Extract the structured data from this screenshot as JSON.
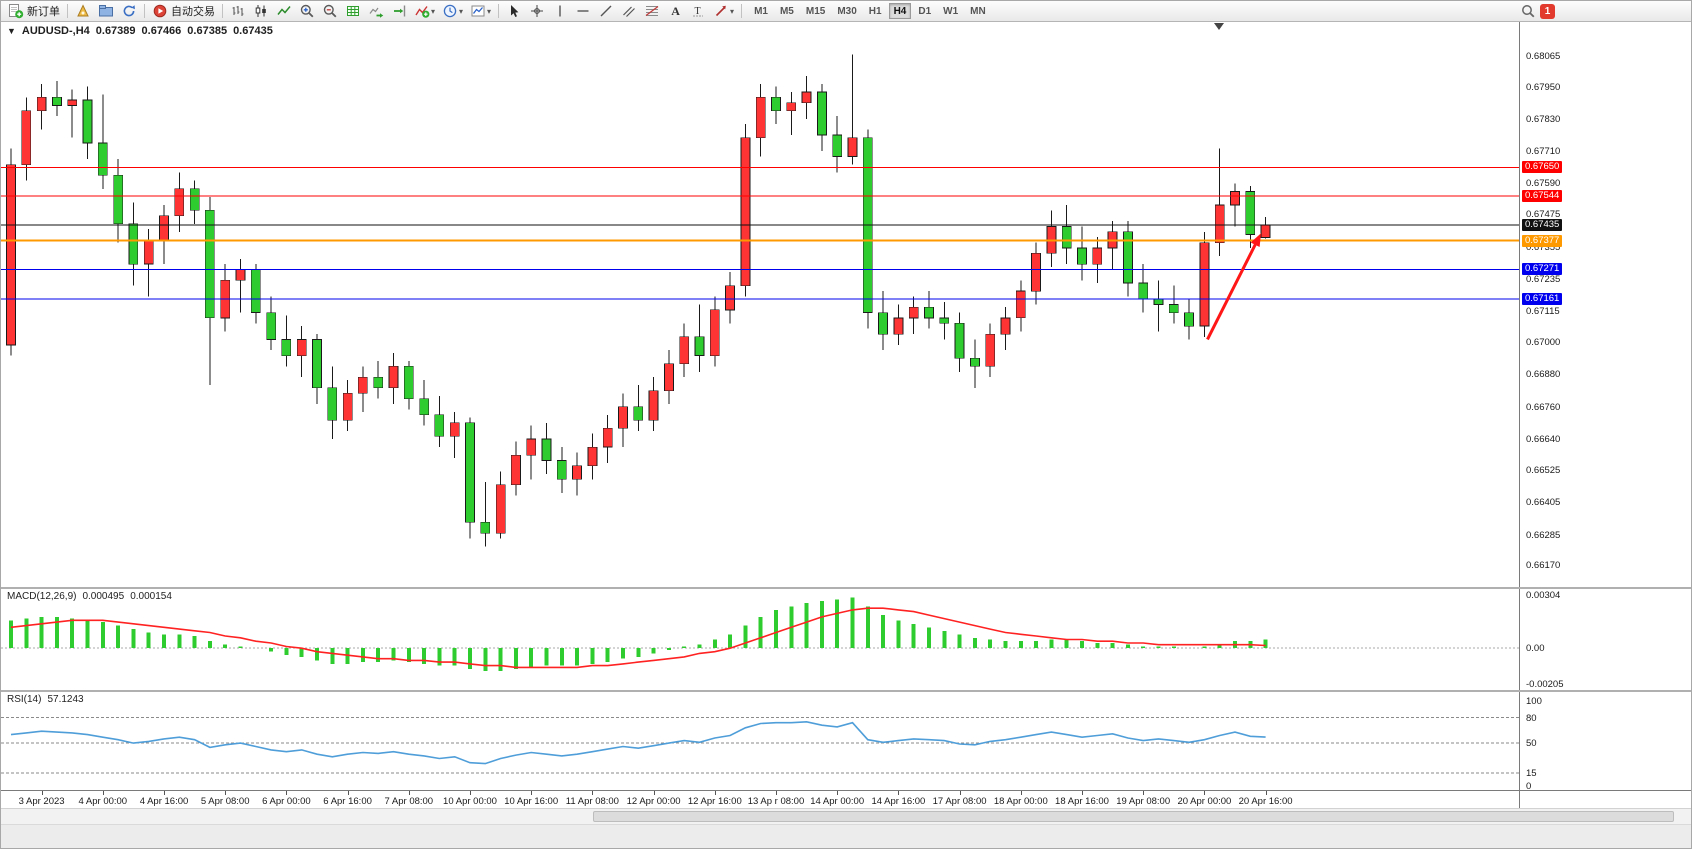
{
  "toolbar": {
    "new_order_label": "新订单",
    "auto_trading_label": "自动交易",
    "timeframes": [
      "M1",
      "M5",
      "M15",
      "M30",
      "H1",
      "H4",
      "D1",
      "W1",
      "MN"
    ],
    "active_timeframe": "H4",
    "notification_count": "1",
    "glyphs": {
      "dropdown": "▾",
      "text_icon": "A",
      "label_icon": "T"
    }
  },
  "quote": {
    "marker": "▼",
    "symbol_period": "AUDUSD-,H4",
    "open": "0.67389",
    "high": "0.67466",
    "low": "0.67385",
    "close": "0.67435"
  },
  "chart_data": [
    {
      "type": "candlestick",
      "title": "AUDUSD-,H4",
      "up_color": "#fe3434",
      "down_color": "#2ecc2e",
      "ylim": [
        0.6609,
        0.6819
      ],
      "y_ticks": [
        "0.68065",
        "0.67950",
        "0.67830",
        "0.67710",
        "0.67590",
        "0.67475",
        "0.67355",
        "0.67235",
        "0.67115",
        "0.67000",
        "0.66880",
        "0.66760",
        "0.66640",
        "0.66525",
        "0.66405",
        "0.66285",
        "0.66170"
      ],
      "levels": [
        {
          "price": 0.6765,
          "label": "0.67650",
          "color": "#ff0000",
          "width": 1
        },
        {
          "price": 0.67544,
          "label": "0.67544",
          "color": "#ff0000",
          "width": 1
        },
        {
          "price": 0.67435,
          "label": "0.67435",
          "color": "#111111",
          "width": 1
        },
        {
          "price": 0.67377,
          "label": "0.67377",
          "color": "#ff9900",
          "width": 2
        },
        {
          "price": 0.67271,
          "label": "0.67271",
          "color": "#0000ee",
          "width": 1
        },
        {
          "price": 0.67161,
          "label": "0.67161",
          "color": "#0000ee",
          "width": 1
        }
      ],
      "x_labels": [
        {
          "i": 2,
          "t": "3 Apr 2023"
        },
        {
          "i": 6,
          "t": "4 Apr 00:00"
        },
        {
          "i": 10,
          "t": "4 Apr 16:00"
        },
        {
          "i": 14,
          "t": "5 Apr 08:00"
        },
        {
          "i": 18,
          "t": "6 Apr 00:00"
        },
        {
          "i": 22,
          "t": "6 Apr 16:00"
        },
        {
          "i": 26,
          "t": "7 Apr 08:00"
        },
        {
          "i": 30,
          "t": "10 Apr 00:00"
        },
        {
          "i": 34,
          "t": "10 Apr 16:00"
        },
        {
          "i": 38,
          "t": "11 Apr 08:00"
        },
        {
          "i": 42,
          "t": "12 Apr 00:00"
        },
        {
          "i": 46,
          "t": "12 Apr 16:00"
        },
        {
          "i": 50,
          "t": "13 Ap r 08:00"
        },
        {
          "i": 54,
          "t": "14 Apr 00:00"
        },
        {
          "i": 58,
          "t": "14 Apr 16:00"
        },
        {
          "i": 62,
          "t": "17 Apr 08:00"
        },
        {
          "i": 66,
          "t": "18 Apr 00:00"
        },
        {
          "i": 70,
          "t": "18 Apr 16:00"
        },
        {
          "i": 74,
          "t": "19 Apr 08:00"
        },
        {
          "i": 78,
          "t": "20 Apr 00:00"
        },
        {
          "i": 82,
          "t": "20 Apr 16:00"
        }
      ],
      "candles": [
        [
          0.6699,
          0.6772,
          0.6695,
          0.6766
        ],
        [
          0.6766,
          0.6791,
          0.676,
          0.6786
        ],
        [
          0.6786,
          0.6796,
          0.6779,
          0.6791
        ],
        [
          0.6791,
          0.6797,
          0.6784,
          0.6788
        ],
        [
          0.6788,
          0.6794,
          0.6776,
          0.679
        ],
        [
          0.679,
          0.6795,
          0.6768,
          0.6774
        ],
        [
          0.6774,
          0.6792,
          0.6757,
          0.6762
        ],
        [
          0.6762,
          0.6768,
          0.6737,
          0.6744
        ],
        [
          0.6744,
          0.6752,
          0.6721,
          0.6729
        ],
        [
          0.6729,
          0.6742,
          0.6717,
          0.6738
        ],
        [
          0.6738,
          0.6751,
          0.6729,
          0.6747
        ],
        [
          0.6747,
          0.6763,
          0.6741,
          0.6757
        ],
        [
          0.6757,
          0.676,
          0.6744,
          0.6749
        ],
        [
          0.6749,
          0.6754,
          0.6684,
          0.6709
        ],
        [
          0.6709,
          0.6729,
          0.6704,
          0.6723
        ],
        [
          0.6723,
          0.6731,
          0.6711,
          0.6727
        ],
        [
          0.6727,
          0.6729,
          0.6707,
          0.6711
        ],
        [
          0.6711,
          0.6717,
          0.6697,
          0.6701
        ],
        [
          0.6701,
          0.671,
          0.6691,
          0.6695
        ],
        [
          0.6695,
          0.6706,
          0.6687,
          0.6701
        ],
        [
          0.6701,
          0.6703,
          0.6677,
          0.6683
        ],
        [
          0.6683,
          0.6691,
          0.6664,
          0.6671
        ],
        [
          0.6671,
          0.6686,
          0.6667,
          0.6681
        ],
        [
          0.6681,
          0.6691,
          0.6674,
          0.6687
        ],
        [
          0.6687,
          0.6693,
          0.6679,
          0.6683
        ],
        [
          0.6683,
          0.6696,
          0.6677,
          0.6691
        ],
        [
          0.6691,
          0.6693,
          0.6675,
          0.6679
        ],
        [
          0.6679,
          0.6686,
          0.6669,
          0.6673
        ],
        [
          0.6673,
          0.668,
          0.6661,
          0.6665
        ],
        [
          0.6665,
          0.6674,
          0.6657,
          0.667
        ],
        [
          0.667,
          0.6672,
          0.6627,
          0.6633
        ],
        [
          0.6633,
          0.6648,
          0.6624,
          0.6629
        ],
        [
          0.6629,
          0.6652,
          0.6627,
          0.6647
        ],
        [
          0.6647,
          0.6663,
          0.6643,
          0.6658
        ],
        [
          0.6658,
          0.6669,
          0.6649,
          0.6664
        ],
        [
          0.6664,
          0.667,
          0.6651,
          0.6656
        ],
        [
          0.6656,
          0.6661,
          0.6644,
          0.6649
        ],
        [
          0.6649,
          0.6659,
          0.6643,
          0.6654
        ],
        [
          0.6654,
          0.6666,
          0.6649,
          0.6661
        ],
        [
          0.6661,
          0.6673,
          0.6655,
          0.6668
        ],
        [
          0.6668,
          0.6681,
          0.6661,
          0.6676
        ],
        [
          0.6676,
          0.6684,
          0.6667,
          0.6671
        ],
        [
          0.6671,
          0.6687,
          0.6667,
          0.6682
        ],
        [
          0.6682,
          0.6697,
          0.6677,
          0.6692
        ],
        [
          0.6692,
          0.6707,
          0.6687,
          0.6702
        ],
        [
          0.6702,
          0.6714,
          0.6689,
          0.6695
        ],
        [
          0.6695,
          0.6717,
          0.6691,
          0.6712
        ],
        [
          0.6712,
          0.6726,
          0.6707,
          0.6721
        ],
        [
          0.6721,
          0.6781,
          0.6717,
          0.6776
        ],
        [
          0.6776,
          0.6796,
          0.6769,
          0.6791
        ],
        [
          0.6791,
          0.6795,
          0.6781,
          0.6786
        ],
        [
          0.6786,
          0.6793,
          0.6777,
          0.6789
        ],
        [
          0.6789,
          0.6799,
          0.6783,
          0.6793
        ],
        [
          0.6793,
          0.6796,
          0.6771,
          0.6777
        ],
        [
          0.6777,
          0.6784,
          0.6763,
          0.6769
        ],
        [
          0.6769,
          0.6807,
          0.6766,
          0.6776
        ],
        [
          0.6776,
          0.6779,
          0.6705,
          0.6711
        ],
        [
          0.6711,
          0.6719,
          0.6697,
          0.6703
        ],
        [
          0.6703,
          0.6714,
          0.6699,
          0.6709
        ],
        [
          0.6709,
          0.6717,
          0.6703,
          0.6713
        ],
        [
          0.6713,
          0.6719,
          0.6705,
          0.6709
        ],
        [
          0.6709,
          0.6715,
          0.6701,
          0.6707
        ],
        [
          0.6707,
          0.6711,
          0.6689,
          0.6694
        ],
        [
          0.6694,
          0.6701,
          0.6683,
          0.6691
        ],
        [
          0.6691,
          0.6707,
          0.6687,
          0.6703
        ],
        [
          0.6703,
          0.6713,
          0.6697,
          0.6709
        ],
        [
          0.6709,
          0.6723,
          0.6704,
          0.6719
        ],
        [
          0.6719,
          0.6737,
          0.6714,
          0.6733
        ],
        [
          0.6733,
          0.6749,
          0.6728,
          0.6743
        ],
        [
          0.6743,
          0.6751,
          0.6729,
          0.6735
        ],
        [
          0.6735,
          0.6743,
          0.6723,
          0.6729
        ],
        [
          0.6729,
          0.6739,
          0.6722,
          0.6735
        ],
        [
          0.6735,
          0.6745,
          0.6727,
          0.6741
        ],
        [
          0.6741,
          0.6745,
          0.6717,
          0.6722
        ],
        [
          0.6722,
          0.6729,
          0.6711,
          0.6716
        ],
        [
          0.6716,
          0.6723,
          0.6704,
          0.6714
        ],
        [
          0.6714,
          0.6721,
          0.6707,
          0.6711
        ],
        [
          0.6711,
          0.6716,
          0.6701,
          0.6706
        ],
        [
          0.6706,
          0.6741,
          0.6702,
          0.6737
        ],
        [
          0.6737,
          0.6772,
          0.6732,
          0.6751
        ],
        [
          0.6751,
          0.6759,
          0.6743,
          0.6756
        ],
        [
          0.6756,
          0.6758,
          0.6735,
          0.674
        ],
        [
          0.67389,
          0.67466,
          0.67385,
          0.67435
        ]
      ],
      "arrow": {
        "from_bar": 78.2,
        "from_price": 0.6701,
        "to_bar": 81.7,
        "to_price": 0.67405,
        "color": "#ff1616"
      }
    },
    {
      "type": "macd",
      "label": "MACD(12,26,9)",
      "value_main": "0.000495",
      "value_signal": "0.000154",
      "histogram_color": "#2ecc2e",
      "signal_color": "#ff2222",
      "ylim": [
        -0.0024,
        0.0034
      ],
      "y_ticks": [
        {
          "v": 0.00304,
          "t": "0.00304"
        },
        {
          "v": 0,
          "t": "0.00"
        },
        {
          "v": -0.00205,
          "t": "-0.00205"
        }
      ],
      "histogram": [
        0.0016,
        0.0017,
        0.0018,
        0.0018,
        0.0017,
        0.0016,
        0.0015,
        0.0013,
        0.0011,
        0.0009,
        0.0008,
        0.0008,
        0.0007,
        0.0004,
        0.0002,
        0.0001,
        0,
        -0.0002,
        -0.0004,
        -0.0005,
        -0.0007,
        -0.0009,
        -0.0009,
        -0.0008,
        -0.0008,
        -0.0007,
        -0.0008,
        -0.0009,
        -0.001,
        -0.001,
        -0.0012,
        -0.0013,
        -0.0013,
        -0.0012,
        -0.0011,
        -0.001,
        -0.001,
        -0.001,
        -0.0009,
        -0.0008,
        -0.0006,
        -0.0005,
        -0.0003,
        -0.0001,
        0.0001,
        0.0002,
        0.0005,
        0.0008,
        0.0013,
        0.0018,
        0.0022,
        0.0024,
        0.0026,
        0.0027,
        0.0028,
        0.0029,
        0.0024,
        0.0019,
        0.0016,
        0.0014,
        0.0012,
        0.001,
        0.0008,
        0.0006,
        0.0005,
        0.0004,
        0.0004,
        0.0004,
        0.0005,
        0.0005,
        0.0004,
        0.0003,
        0.0003,
        0.0002,
        0.0001,
        0.0001,
        0.0001,
        0,
        0.0001,
        0.0002,
        0.0004,
        0.0004,
        0.000495
      ],
      "signal": [
        0.0012,
        0.0013,
        0.0014,
        0.0015,
        0.0016,
        0.0016,
        0.0016,
        0.0015,
        0.0014,
        0.0013,
        0.0012,
        0.0011,
        0.001,
        0.0009,
        0.0007,
        0.0006,
        0.0004,
        0.0003,
        0.0001,
        0,
        -0.0002,
        -0.0003,
        -0.0004,
        -0.0005,
        -0.0006,
        -0.0006,
        -0.0007,
        -0.0007,
        -0.0008,
        -0.0008,
        -0.0009,
        -0.001,
        -0.001,
        -0.0011,
        -0.0011,
        -0.0011,
        -0.0011,
        -0.0011,
        -0.001,
        -0.001,
        -0.0009,
        -0.0008,
        -0.0007,
        -0.0006,
        -0.0005,
        -0.0003,
        -0.0002,
        0,
        0.0003,
        0.0006,
        0.0009,
        0.0012,
        0.0015,
        0.0018,
        0.002,
        0.0022,
        0.0023,
        0.0023,
        0.0022,
        0.0021,
        0.0019,
        0.0017,
        0.0015,
        0.0013,
        0.0011,
        0.0009,
        0.0008,
        0.0007,
        0.0006,
        0.0005,
        0.0005,
        0.0004,
        0.0004,
        0.0003,
        0.0003,
        0.0002,
        0.0002,
        0.0002,
        0.0002,
        0.0002,
        0.0002,
        0.0002,
        0.000154
      ]
    },
    {
      "type": "line",
      "label": "RSI(14)",
      "value": "57.1243",
      "line_color": "#4f9ed9",
      "ylim": [
        -5,
        110
      ],
      "levels": [
        80,
        50,
        15
      ],
      "y_ticks": [
        {
          "v": 100,
          "t": "100"
        },
        {
          "v": 80,
          "t": "80"
        },
        {
          "v": 50,
          "t": "50"
        },
        {
          "v": 15,
          "t": "15"
        },
        {
          "v": 0,
          "t": "0"
        }
      ],
      "values": [
        60,
        62,
        64,
        63,
        62,
        60,
        57,
        54,
        50,
        52,
        55,
        57,
        54,
        45,
        48,
        50,
        46,
        42,
        40,
        42,
        37,
        34,
        37,
        39,
        38,
        40,
        37,
        35,
        32,
        34,
        27,
        26,
        32,
        36,
        39,
        37,
        35,
        37,
        40,
        43,
        46,
        44,
        47,
        50,
        53,
        51,
        56,
        59,
        68,
        73,
        74,
        74,
        75,
        71,
        69,
        74,
        54,
        51,
        53,
        55,
        54,
        53,
        49,
        48,
        52,
        54,
        57,
        60,
        63,
        60,
        57,
        59,
        61,
        56,
        53,
        55,
        53,
        51,
        54,
        59,
        63,
        58,
        57.1243
      ]
    }
  ]
}
